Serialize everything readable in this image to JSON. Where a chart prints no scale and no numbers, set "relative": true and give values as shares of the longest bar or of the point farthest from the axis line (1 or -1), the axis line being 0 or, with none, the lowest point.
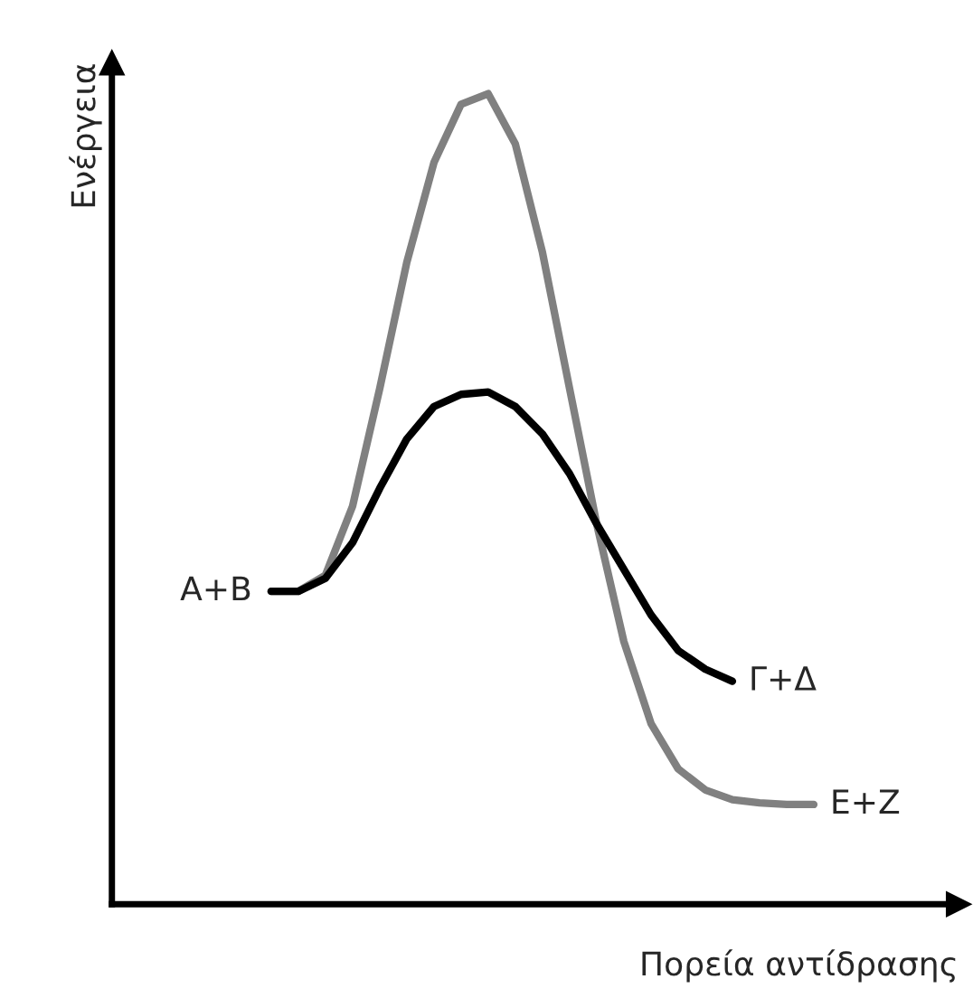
{
  "chart_data": {
    "type": "line",
    "relative": true,
    "xlabel": "Πορεία αντίδρασης",
    "ylabel": "Ενέργεια",
    "annotations": [
      "A+B"
    ],
    "legend": false,
    "marker": "none",
    "line_style": "solid",
    "categories": [
      null,
      null,
      null,
      null,
      null,
      null,
      null,
      null,
      null,
      null,
      null,
      null,
      null,
      null,
      null,
      null,
      null,
      null,
      null,
      null,
      null
    ],
    "series": [
      {
        "name": "E+Z",
        "color": "#808080",
        "values": [
          0.386,
          0.386,
          0.406,
          0.491,
          0.636,
          0.792,
          0.915,
          0.987,
          1,
          0.938,
          0.804,
          0.636,
          0.469,
          0.324,
          0.223,
          0.167,
          0.141,
          0.129,
          0.125,
          0.123,
          0.123
        ]
      },
      {
        "name": "Γ+Δ",
        "color": "#000000",
        "values": [
          0.386,
          0.386,
          0.402,
          0.446,
          0.513,
          0.574,
          0.614,
          0.629,
          0.632,
          0.614,
          0.58,
          0.531,
          0.469,
          0.413,
          0.357,
          0.313,
          0.29,
          0.275,
          null,
          null,
          null
        ]
      }
    ]
  }
}
